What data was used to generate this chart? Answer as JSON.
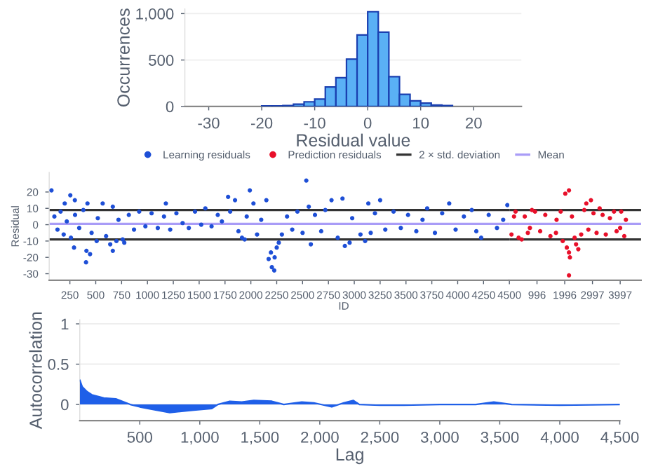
{
  "chart_data": [
    {
      "type": "histogram",
      "xlabel": "Residual value",
      "ylabel": "Occurrences",
      "color": "#5ab0f5",
      "bins": [
        -20,
        -18,
        -16,
        -14,
        -12,
        -10,
        -8,
        -6,
        -4,
        -2,
        0,
        2,
        4,
        6,
        8,
        10,
        12,
        14,
        16
      ],
      "values": [
        5,
        5,
        10,
        25,
        50,
        80,
        210,
        310,
        510,
        770,
        1020,
        800,
        320,
        130,
        60,
        35,
        15,
        10
      ],
      "xlim": [
        -34.5,
        29
      ],
      "xticks": [
        -30,
        -20,
        -10,
        0,
        10,
        20
      ],
      "ylim": [
        0,
        1050
      ],
      "yticks": [
        0,
        500,
        {
          "value": 1000,
          "label": "1,000"
        }
      ],
      "grid": "y"
    },
    {
      "type": "scatter",
      "xlabel": "ID",
      "ylabel": "Residual",
      "marker": "circle",
      "legend": "top",
      "grid": false,
      "xlim": [
        50,
        4500
      ],
      "ylim": [
        -34,
        32
      ],
      "yticks": [
        -30,
        -20,
        -10,
        0,
        10,
        20
      ],
      "xticks": [
        250,
        500,
        750,
        1000,
        1250,
        1500,
        1750,
        2000,
        2250,
        2500,
        2750,
        3000,
        3250,
        3500,
        3750,
        4000,
        4250,
        4500
      ],
      "series": [
        {
          "name": "Learning residuals",
          "color": "#1e4fd6",
          "x": [
            72,
            254,
            200,
            298,
            420,
            410,
            445,
            406,
            290,
            567,
            509,
            665,
            665,
            776,
            1178,
            1780,
            1847,
            1990,
            1914,
            2025,
            2150,
            2172,
            2203,
            2226,
            2194,
            2270,
            2560,
            2580,
            2780,
            2536,
            2886,
            2909,
            2955,
            3136,
            3250,
            3159,
            3105,
            3705,
            3918,
            4136,
            4227,
            4480,
            100,
            130,
            160,
            190,
            220,
            260,
            300,
            340,
            380,
            460,
            520,
            600,
            640,
            700,
            720,
            760,
            820,
            870,
            920,
            980,
            1040,
            1100,
            1160,
            1220,
            1280,
            1340,
            1400,
            1460,
            1520,
            1560,
            1620,
            1680,
            1720,
            1800,
            1880,
            1940,
            1960,
            2060,
            2100,
            2230,
            2250,
            2300,
            2350,
            2400,
            2450,
            2500,
            2620,
            2680,
            2720,
            2840,
            2980,
            3060,
            3200,
            3300,
            3380,
            3450,
            3520,
            3600,
            3660,
            3780,
            3850,
            3980,
            4060,
            4180,
            4300,
            4380,
            4440
          ],
          "values": [
            21,
            18,
            13,
            15,
            13,
            -16,
            -18,
            -23,
            -14,
            13,
            -10,
            11,
            -16,
            -11,
            13,
            17,
            15,
            21,
            -8,
            13,
            15,
            -21,
            -26,
            -28,
            -17,
            -11,
            11,
            -12,
            15,
            27,
            16,
            -13,
            -11,
            13,
            15,
            -5,
            -10,
            10,
            13,
            9,
            -8,
            12,
            5,
            -3,
            8,
            -6,
            2,
            -8,
            6,
            -2,
            9,
            -5,
            4,
            -7,
            -12,
            -10,
            3,
            -9,
            6,
            -3,
            8,
            -1,
            7,
            -2,
            5,
            -3,
            7,
            1,
            -2,
            8,
            0,
            10,
            -1,
            6,
            2,
            8,
            -4,
            -9,
            5,
            -6,
            3,
            -20,
            -14,
            -6,
            5,
            -3,
            8,
            -5,
            6,
            -4,
            9,
            -8,
            4,
            -6,
            7,
            -3,
            8,
            -2,
            6,
            -4,
            3,
            -5,
            7,
            -3,
            5,
            -4,
            6,
            -2,
            3
          ]
        }
      ],
      "ref_lines": [
        {
          "axis": "y",
          "value": 9,
          "label": "2 × std. deviation",
          "color": "#333333"
        },
        {
          "axis": "y",
          "value": -9,
          "label": null,
          "color": "#333333"
        },
        {
          "axis": "y",
          "value": 0.5,
          "label": "Mean",
          "color": "#a99cf7"
        }
      ]
    },
    {
      "type": "scatter",
      "marker": "circle",
      "legend": "top",
      "grid": false,
      "tick_labels": "x",
      "xlim": [
        0,
        4750
      ],
      "ylim": [
        -34,
        32
      ],
      "xticks": [
        996,
        1996,
        2997,
        3997
      ],
      "series": [
        {
          "name": "Prediction residuals",
          "color": "#e8102a",
          "x": [
            2017,
            2150,
            2150,
            2183,
            2150,
            2486,
            2775,
            2942,
            167,
            333,
            666,
            1680,
            2353,
            3363,
            3867,
            4203,
            4033,
            925,
            74,
            222,
            444,
            555,
            740,
            814,
            1110,
            1295,
            1480,
            1702,
            1850,
            1924,
            2072,
            2257,
            2405,
            2590,
            2701,
            2849,
            3034,
            3145,
            3256,
            3478,
            3626,
            3774,
            3996,
            4144
          ],
          "values": [
            19,
            21,
            -31,
            -20,
            -17,
            -15,
            13,
            15,
            5,
            -8,
            -5,
            -5,
            -8,
            6,
            -4,
            3,
            8,
            8,
            -6,
            8,
            -9,
            5,
            -2,
            9,
            -4,
            6,
            -7,
            3,
            8,
            -10,
            -14,
            5,
            -12,
            -6,
            9,
            -3,
            7,
            -5,
            10,
            -6,
            4,
            8,
            -2,
            -7
          ]
        }
      ],
      "ref_lines": [
        {
          "axis": "y",
          "value": 9,
          "label": null,
          "color": "#333333"
        },
        {
          "axis": "y",
          "value": -9,
          "label": null,
          "color": "#333333"
        },
        {
          "axis": "y",
          "value": 0.5,
          "label": null,
          "color": "#a99cf7"
        }
      ]
    },
    {
      "type": "area",
      "xlabel": "Lag",
      "ylabel": "Autocorrelation",
      "color": "#1f5fe8",
      "grid": "y",
      "x": [
        1,
        20,
        60,
        100,
        150,
        200,
        300,
        420,
        500,
        600,
        750,
        950,
        1100,
        1150,
        1250,
        1350,
        1450,
        1600,
        1700,
        1850,
        1950,
        2100,
        2200,
        2280,
        2330,
        2500,
        2700,
        3000,
        3300,
        3450,
        3600,
        4000,
        4500
      ],
      "values": [
        0.3,
        0.22,
        0.16,
        0.12,
        0.1,
        0.08,
        0.07,
        0,
        -0.03,
        -0.06,
        -0.1,
        -0.07,
        -0.05,
        0,
        0.04,
        0.03,
        0.05,
        0.04,
        0,
        0.03,
        0.02,
        -0.03,
        0.02,
        0.05,
        0,
        -0.01,
        -0.01,
        0,
        0,
        0.03,
        0,
        -0.01,
        0
      ],
      "xlim": [
        0,
        4500
      ],
      "xticks": [
        500,
        {
          "value": 1000,
          "label": "1,000"
        },
        {
          "value": 1500,
          "label": "1,500"
        },
        {
          "value": 2000,
          "label": "2,000"
        },
        {
          "value": 2500,
          "label": "2,500"
        },
        {
          "value": 3000,
          "label": "3,000"
        },
        {
          "value": 3500,
          "label": "3,500"
        },
        {
          "value": 4000,
          "label": "4,000"
        },
        {
          "value": 4500,
          "label": "4,500"
        }
      ],
      "ylim": [
        -0.2,
        1.05
      ],
      "yticks": [
        0,
        0.5,
        1
      ]
    }
  ]
}
